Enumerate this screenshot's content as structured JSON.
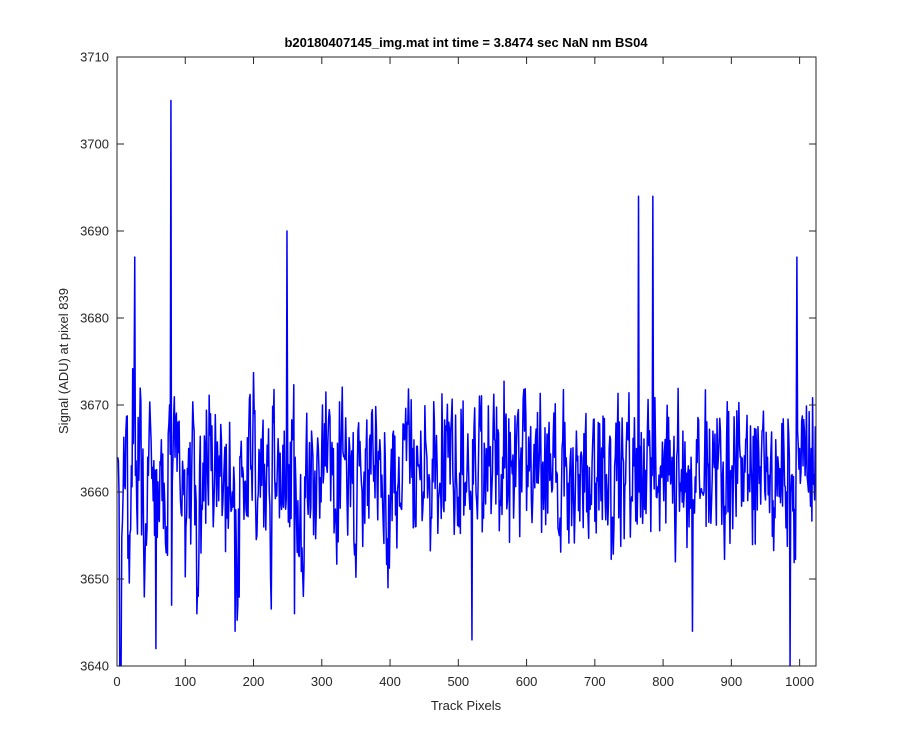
{
  "chart_data": {
    "type": "line",
    "title": "b20180407145_img.mat int time = 3.8474 sec  NaN nm BS04",
    "xlabel": "Track Pixels",
    "ylabel": "Signal (ADU) at pixel 839",
    "xlim": [
      0,
      1024
    ],
    "ylim": [
      3640,
      3710
    ],
    "xticks": [
      0,
      100,
      200,
      300,
      400,
      500,
      600,
      700,
      800,
      900,
      1000
    ],
    "yticks": [
      3640,
      3650,
      3660,
      3670,
      3680,
      3690,
      3700,
      3710
    ],
    "grid": false,
    "legend": "none",
    "series_color": "#0000ff",
    "series": [
      {
        "x_start": 1,
        "x_step": 4,
        "values": [
          3664,
          3641,
          3660,
          3667,
          3655,
          3663,
          3672,
          3658,
          3666,
          3661,
          3652,
          3664,
          3668,
          3659,
          3663,
          3657,
          3666,
          3661,
          3656,
          3670,
          3661,
          3664,
          3668,
          3659,
          3662,
          3656,
          3665,
          3660,
          3667,
          3646,
          3663,
          3658,
          3665,
          3661,
          3669,
          3656,
          3664,
          3659,
          3666,
          3663,
          3657,
          3668,
          3660,
          3665,
          3647,
          3664,
          3662,
          3658,
          3667,
          3663,
          3669,
          3655,
          3664,
          3666,
          3660,
          3663,
          3650,
          3668,
          3661,
          3664,
          3658,
          3667,
          3662,
          3656,
          3666,
          3664,
          3659,
          3662,
          3648,
          3665,
          3661,
          3667,
          3660,
          3664,
          3657,
          3670,
          3663,
          3666,
          3659,
          3665,
          3656,
          3662,
          3668,
          3664,
          3659,
          3665,
          3661,
          3654,
          3667,
          3663,
          3660,
          3665,
          3657,
          3669,
          3663,
          3661,
          3666,
          3659,
          3664,
          3649,
          3662,
          3667,
          3660,
          3664,
          3658,
          3666,
          3668,
          3661,
          3665,
          3656,
          3663,
          3667,
          3660,
          3665,
          3662,
          3657,
          3668,
          3663,
          3661,
          3666,
          3659,
          3664,
          3667,
          3660,
          3662,
          3656,
          3665,
          3661,
          3663,
          3658,
          3666,
          3664,
          3661,
          3667,
          3657,
          3665,
          3663,
          3660,
          3666,
          3662,
          3659,
          3664,
          3668,
          3661,
          3663,
          3657,
          3665,
          3662,
          3660,
          3667,
          3663,
          3664,
          3659,
          3666,
          3661,
          3665,
          3658,
          3663,
          3668,
          3660,
          3664,
          3662,
          3657,
          3666,
          3663,
          3661,
          3665,
          3659,
          3667,
          3662,
          3664,
          3660,
          3663,
          3658,
          3666,
          3661,
          3668,
          3659,
          3664,
          3662,
          3665,
          3657,
          3663,
          3667,
          3660,
          3664,
          3661,
          3666,
          3659,
          3663,
          3665,
          3660,
          3662,
          3658,
          3667,
          3664,
          3661,
          3665,
          3660,
          3663,
          3659,
          3666,
          3662,
          3664,
          3657,
          3665,
          3661,
          3667,
          3660,
          3663,
          3664,
          3658,
          3666,
          3662,
          3660,
          3665,
          3663,
          3659,
          3667,
          3661,
          3664,
          3662,
          3657,
          3666,
          3660,
          3663,
          3665,
          3661,
          3664,
          3659,
          3666,
          3662,
          3663,
          3658,
          3665,
          3661,
          3667,
          3660,
          3664,
          3662,
          3659,
          3666,
          3663,
          3661,
          3665,
          3660,
          3664,
          3662,
          3658,
          3667,
          3661,
          3663,
          3664,
          3660,
          3665,
          3662,
          3659,
          3666,
          3661,
          3663,
          3664,
          3660,
          3665,
          3662
        ]
      }
    ],
    "spikes": [
      {
        "x": 57,
        "y": 3642
      },
      {
        "x": 79,
        "y": 3705
      },
      {
        "x": 80,
        "y": 3647
      },
      {
        "x": 26,
        "y": 3687
      },
      {
        "x": 173,
        "y": 3644
      },
      {
        "x": 249,
        "y": 3690
      },
      {
        "x": 260,
        "y": 3646
      },
      {
        "x": 520,
        "y": 3643
      },
      {
        "x": 764,
        "y": 3694
      },
      {
        "x": 785,
        "y": 3694
      },
      {
        "x": 843,
        "y": 3644
      },
      {
        "x": 986,
        "y": 3640
      },
      {
        "x": 996,
        "y": 3687
      }
    ]
  }
}
